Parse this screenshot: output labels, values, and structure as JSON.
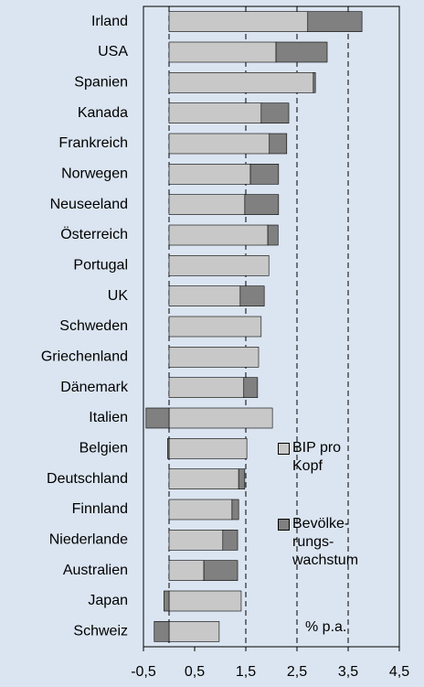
{
  "chart_data": {
    "type": "stacked-barh",
    "categories": [
      "Irland",
      "USA",
      "Spanien",
      "Kanada",
      "Frankreich",
      "Norwegen",
      "Neuseeland",
      "Österreich",
      "Portugal",
      "UK",
      "Schweden",
      "Griechenland",
      "Dänemark",
      "Italien",
      "Belgien",
      "Deutschland",
      "Finnland",
      "Niederlande",
      "Australien",
      "Japan",
      "Schweiz"
    ],
    "series": [
      {
        "name": "BIP pro\nKopf",
        "color": "#c8c8c8",
        "values": [
          2.71,
          2.09,
          2.82,
          1.8,
          1.96,
          1.59,
          1.48,
          1.93,
          1.95,
          1.39,
          1.8,
          1.75,
          1.46,
          2.02,
          1.52,
          1.36,
          1.23,
          1.05,
          0.68,
          1.41,
          0.98
        ]
      },
      {
        "name": "Bevölke-\nrungs-\nwachstum",
        "color": "#808080",
        "values": [
          1.06,
          1.0,
          0.04,
          0.54,
          0.34,
          0.55,
          0.66,
          0.2,
          0,
          0.47,
          0,
          0,
          0.27,
          -0.45,
          -0.03,
          0.12,
          0.13,
          0.29,
          0.66,
          -0.1,
          -0.29
        ]
      }
    ],
    "xlim": [
      -0.5,
      4.5
    ],
    "xticks": [
      {
        "value": -0.5,
        "label": "-0,5"
      },
      {
        "value": 0.5,
        "label": "0,5"
      },
      {
        "value": 1.5,
        "label": "1,5"
      },
      {
        "value": 2.5,
        "label": "2,5"
      },
      {
        "value": 3.5,
        "label": "3,5"
      },
      {
        "value": 4.5,
        "label": "4,5"
      }
    ],
    "gridlines": [
      0,
      1.5,
      2.5,
      3.5
    ],
    "annotation": "% p.a."
  }
}
